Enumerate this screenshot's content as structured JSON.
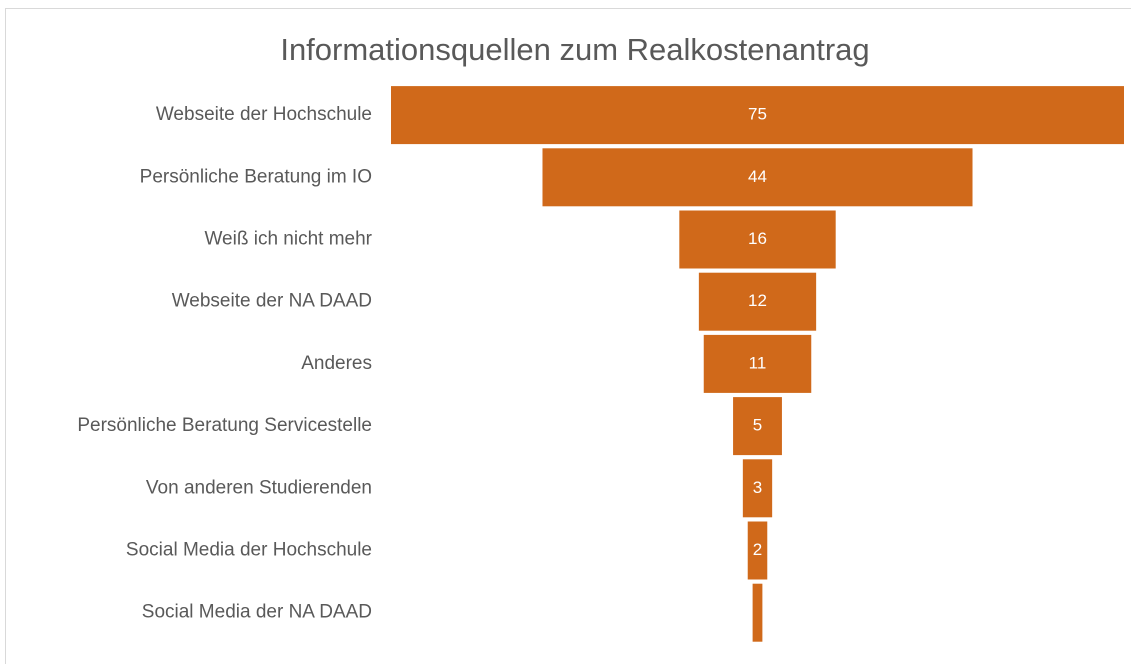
{
  "chart_data": {
    "type": "funnel",
    "title": "Informationsquellen zum Realkostenantrag",
    "categories": [
      "Webseite der Hochschule",
      "Persönliche Beratung im IO",
      "Weiß ich nicht mehr",
      "Webseite der NA DAAD",
      "Anderes",
      "Persönliche Beratung Servicestelle",
      "Von anderen Studierenden",
      "Social Media der Hochschule",
      "Social Media der NA DAAD"
    ],
    "values": [
      75,
      44,
      16,
      12,
      11,
      5,
      3,
      2,
      1
    ],
    "color": "#d0691a"
  }
}
